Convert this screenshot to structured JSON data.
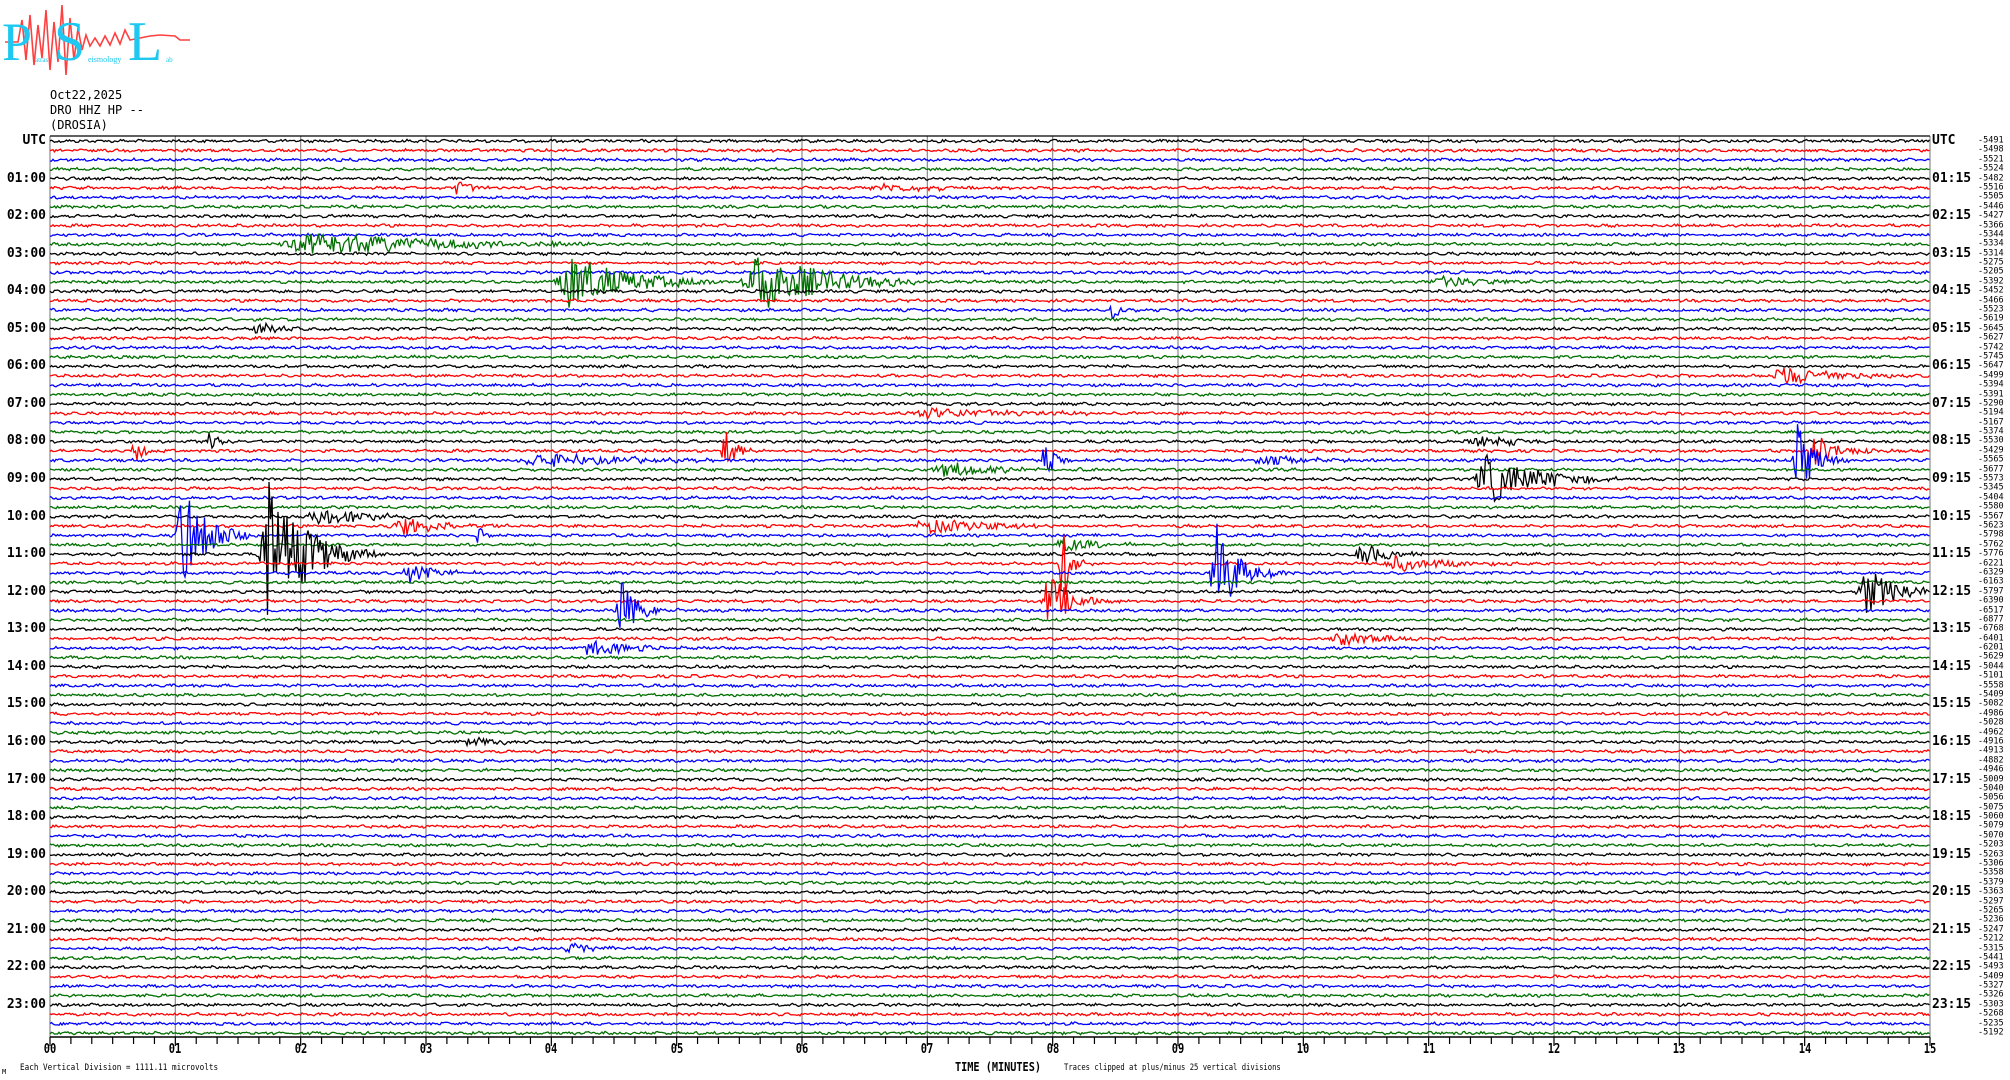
{
  "logo": {
    "text": "Patras Seismology Lab",
    "letters": [
      "P",
      "S",
      "L"
    ],
    "colors": {
      "letters": "#1ec8f0",
      "trace": "#ff4040"
    }
  },
  "header": {
    "date": "Oct22,2025",
    "channel": "DRO HHZ HP --",
    "station": "(DROSIA)"
  },
  "chart_data": {
    "type": "helicorder",
    "xlabel": "TIME (MINUTES)",
    "xlim": [
      0,
      15
    ],
    "x_ticks": [
      "00",
      "01",
      "02",
      "03",
      "04",
      "05",
      "06",
      "07",
      "08",
      "09",
      "10",
      "11",
      "12",
      "13",
      "14",
      "15"
    ],
    "left_axis_label": "UTC",
    "right_axis_label": "UTC",
    "left_hour_labels": [
      "01:00",
      "02:00",
      "03:00",
      "04:00",
      "05:00",
      "06:00",
      "07:00",
      "08:00",
      "09:00",
      "10:00",
      "11:00",
      "12:00",
      "13:00",
      "14:00",
      "15:00",
      "16:00",
      "17:00",
      "18:00",
      "19:00",
      "20:00",
      "21:00",
      "22:00",
      "23:00"
    ],
    "right_hour_labels": [
      "01:15",
      "02:15",
      "03:15",
      "04:15",
      "05:15",
      "06:15",
      "07:15",
      "08:15",
      "09:15",
      "10:15",
      "11:15",
      "12:15",
      "13:15",
      "14:15",
      "15:15",
      "16:15",
      "17:15",
      "18:15",
      "19:15",
      "20:15",
      "21:15",
      "22:15",
      "23:15"
    ],
    "trace_colors": [
      "#000000",
      "#ff0000",
      "#0000ff",
      "#007000"
    ],
    "grid": true,
    "trace_offsets": [
      "-5491",
      "-5498",
      "-5521",
      "-5524",
      "-5482",
      "-5516",
      "-5505",
      "-5446",
      "-5427",
      "-5366",
      "-5344",
      "-5334",
      "-5314",
      "-5275",
      "-5205",
      "-5392",
      "-5452",
      "-5466",
      "-5523",
      "-5619",
      "-5645",
      "-5627",
      "-5742",
      "-5745",
      "-5647",
      "-5499",
      "-5394",
      "-5391",
      "-5290",
      "-5194",
      "-5167",
      "-5374",
      "-5530",
      "-5429",
      "-5565",
      "-5677",
      "-5573",
      "-5345",
      "-5404",
      "-5580",
      "-5567",
      "-5623",
      "-5798",
      "-5762",
      "-5776",
      "-6221",
      "-6329",
      "-6163",
      "-5797",
      "-6390",
      "-6517",
      "-6877",
      "-6768",
      "-6401",
      "-6201",
      "-5629",
      "-5044",
      "-5101",
      "-5558",
      "-5409",
      "-5082",
      "-4986",
      "-5028",
      "-4962",
      "-4916",
      "-4913",
      "-4882",
      "-4946",
      "-5009",
      "-5040",
      "-5056",
      "-5075",
      "-5060",
      "-5079",
      "-5070",
      "-5203",
      "-5263",
      "-5306",
      "-5358",
      "-5379",
      "-5363",
      "-5297",
      "-5265",
      "-5236",
      "-5247",
      "-5212",
      "-5315",
      "-5441",
      "-5493",
      "-5409",
      "-5327",
      "-5326",
      "-5303",
      "-5268",
      "-5235",
      "-5192"
    ],
    "events": [
      {
        "trace": "01:15",
        "t0": 3.2,
        "t1": 3.5,
        "amp": 0.8
      },
      {
        "trace": "01:15",
        "t0": 6.5,
        "t1": 7.6,
        "amp": 0.4
      },
      {
        "trace": "02:45",
        "t0": 1.8,
        "t1": 4.0,
        "amp": 1.3
      },
      {
        "trace": "03:45",
        "t0": 4.0,
        "t1": 5.0,
        "amp": 3.0
      },
      {
        "trace": "03:45",
        "t0": 5.5,
        "t1": 6.6,
        "amp": 3.2
      },
      {
        "trace": "03:45",
        "t0": 11.0,
        "t1": 11.7,
        "amp": 0.7
      },
      {
        "trace": "04:30",
        "t0": 8.45,
        "t1": 8.6,
        "amp": 1.2
      },
      {
        "trace": "05:00",
        "t0": 1.6,
        "t1": 1.9,
        "amp": 1.0
      },
      {
        "trace": "06:15",
        "t0": 13.7,
        "t1": 14.6,
        "amp": 1.1
      },
      {
        "trace": "07:15",
        "t0": 6.8,
        "t1": 8.2,
        "amp": 0.6
      },
      {
        "trace": "08:00",
        "t0": 1.25,
        "t1": 1.45,
        "amp": 2.0
      },
      {
        "trace": "08:00",
        "t0": 11.3,
        "t1": 11.9,
        "amp": 0.8
      },
      {
        "trace": "08:15",
        "t0": 0.65,
        "t1": 0.8,
        "amp": 1.5
      },
      {
        "trace": "08:15",
        "t0": 5.35,
        "t1": 5.5,
        "amp": 4.0
      },
      {
        "trace": "08:15",
        "t0": 14.0,
        "t1": 14.4,
        "amp": 2.0
      },
      {
        "trace": "08:30",
        "t0": 3.7,
        "t1": 5.0,
        "amp": 0.9
      },
      {
        "trace": "08:30",
        "t0": 7.9,
        "t1": 8.1,
        "amp": 2.0
      },
      {
        "trace": "08:30",
        "t0": 9.6,
        "t1": 10.2,
        "amp": 0.8
      },
      {
        "trace": "08:30",
        "t0": 13.9,
        "t1": 14.2,
        "amp": 4.0
      },
      {
        "trace": "08:45",
        "t0": 7.0,
        "t1": 8.0,
        "amp": 0.8
      },
      {
        "trace": "09:00",
        "t0": 11.35,
        "t1": 12.2,
        "amp": 2.8
      },
      {
        "trace": "10:00",
        "t0": 2.0,
        "t1": 3.0,
        "amp": 0.9
      },
      {
        "trace": "10:15",
        "t0": 2.7,
        "t1": 3.4,
        "amp": 1.0
      },
      {
        "trace": "10:15",
        "t0": 6.8,
        "t1": 8.0,
        "amp": 0.8
      },
      {
        "trace": "10:30",
        "t0": 1.0,
        "t1": 1.4,
        "amp": 6.0
      },
      {
        "trace": "10:30",
        "t0": 3.4,
        "t1": 3.5,
        "amp": 1.2
      },
      {
        "trace": "10:45",
        "t0": 8.0,
        "t1": 8.5,
        "amp": 1.0
      },
      {
        "trace": "11:00",
        "t0": 1.65,
        "t1": 2.3,
        "amp": 8.0
      },
      {
        "trace": "11:00",
        "t0": 10.4,
        "t1": 10.9,
        "amp": 1.2
      },
      {
        "trace": "11:15",
        "t0": 8.05,
        "t1": 8.2,
        "amp": 6.0
      },
      {
        "trace": "11:15",
        "t0": 10.6,
        "t1": 11.4,
        "amp": 0.9
      },
      {
        "trace": "11:30",
        "t0": 2.8,
        "t1": 3.3,
        "amp": 1.0
      },
      {
        "trace": "11:30",
        "t0": 9.25,
        "t1": 9.6,
        "amp": 6.0
      },
      {
        "trace": "12:00",
        "t0": 14.4,
        "t1": 15.0,
        "amp": 2.5
      },
      {
        "trace": "12:15",
        "t0": 7.9,
        "t1": 8.3,
        "amp": 3.0
      },
      {
        "trace": "12:30",
        "t0": 4.5,
        "t1": 4.8,
        "amp": 3.5
      },
      {
        "trace": "13:15",
        "t0": 10.2,
        "t1": 11.0,
        "amp": 0.7
      },
      {
        "trace": "13:30",
        "t0": 4.2,
        "t1": 4.9,
        "amp": 0.9
      },
      {
        "trace": "16:00",
        "t0": 3.3,
        "t1": 3.7,
        "amp": 0.9
      },
      {
        "trace": "21:30",
        "t0": 4.1,
        "t1": 4.5,
        "amp": 0.8
      }
    ]
  },
  "footer": {
    "scale_note": "Each Vertical Division = 1111.11 microvolts",
    "corner_mark": "M",
    "clip_note": "Traces clipped at plus/minus 25 vertical divisions"
  }
}
